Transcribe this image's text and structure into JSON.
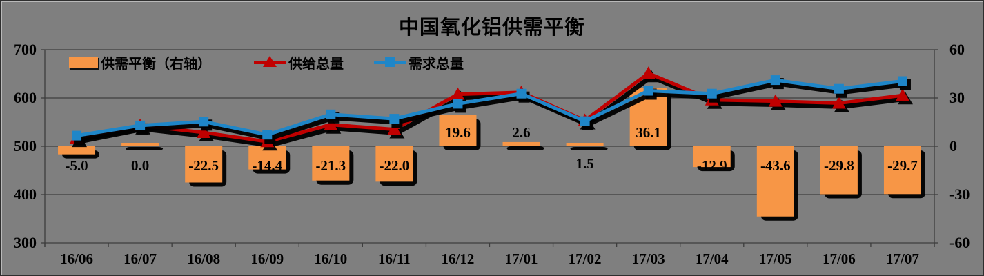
{
  "title": "中国氧化铝供需平衡",
  "colors": {
    "background": "#7f7f7f",
    "bar": "#f79646",
    "supply_line": "#c00000",
    "demand_line": "#1f86c8",
    "gridline": "#3d3d3d",
    "shadow": "#000000",
    "text": "#000000"
  },
  "legend": {
    "items": [
      {
        "label": "供需平衡（右轴）",
        "marker": "bar-swatch"
      },
      {
        "label": "供给总量",
        "marker": "triangle-line"
      },
      {
        "label": "需求总量",
        "marker": "square-line"
      }
    ]
  },
  "chart_data": {
    "type": "combo",
    "categories": [
      "16/06",
      "16/07",
      "16/08",
      "16/09",
      "16/10",
      "16/11",
      "16/12",
      "17/01",
      "17/02",
      "17/03",
      "17/04",
      "17/05",
      "17/06",
      "17/07"
    ],
    "series": [
      {
        "name": "供需平衡（右轴）",
        "type": "bar",
        "axis": "right",
        "color": "#f79646",
        "values": [
          -5.0,
          0.0,
          -22.5,
          -14.4,
          -21.3,
          -22.0,
          19.6,
          2.6,
          1.5,
          36.1,
          -12.9,
          -43.6,
          -29.8,
          -29.7
        ],
        "data_labels": [
          "-5.0",
          "0.0",
          "-22.5",
          "-14.4",
          "-21.3",
          "-22.0",
          "19.6",
          "2.6",
          "1.5",
          "36.1",
          "-12.9",
          "-43.6",
          "-29.8",
          "-29.7"
        ]
      },
      {
        "name": "供给总量",
        "type": "line",
        "axis": "left",
        "marker": "triangle",
        "color": "#c00000",
        "values": [
          517.0,
          543.0,
          528.5,
          509.6,
          544.7,
          535.0,
          607.6,
          611.6,
          553.5,
          651.1,
          596.1,
          593.4,
          589.2,
          605.3
        ]
      },
      {
        "name": "需求总量",
        "type": "line",
        "axis": "left",
        "marker": "square",
        "color": "#1f86c8",
        "values": [
          522,
          543,
          551,
          524,
          566,
          557,
          588,
          609,
          552,
          615,
          609,
          637,
          619,
          635
        ]
      }
    ],
    "left_axis": {
      "min": 300,
      "max": 700,
      "ticks": [
        700,
        600,
        500,
        400,
        300
      ]
    },
    "right_axis": {
      "min": -60,
      "max": 60,
      "ticks": [
        60,
        30,
        0,
        -30,
        -60
      ]
    },
    "grid": true,
    "legend_position": "top-inside"
  }
}
